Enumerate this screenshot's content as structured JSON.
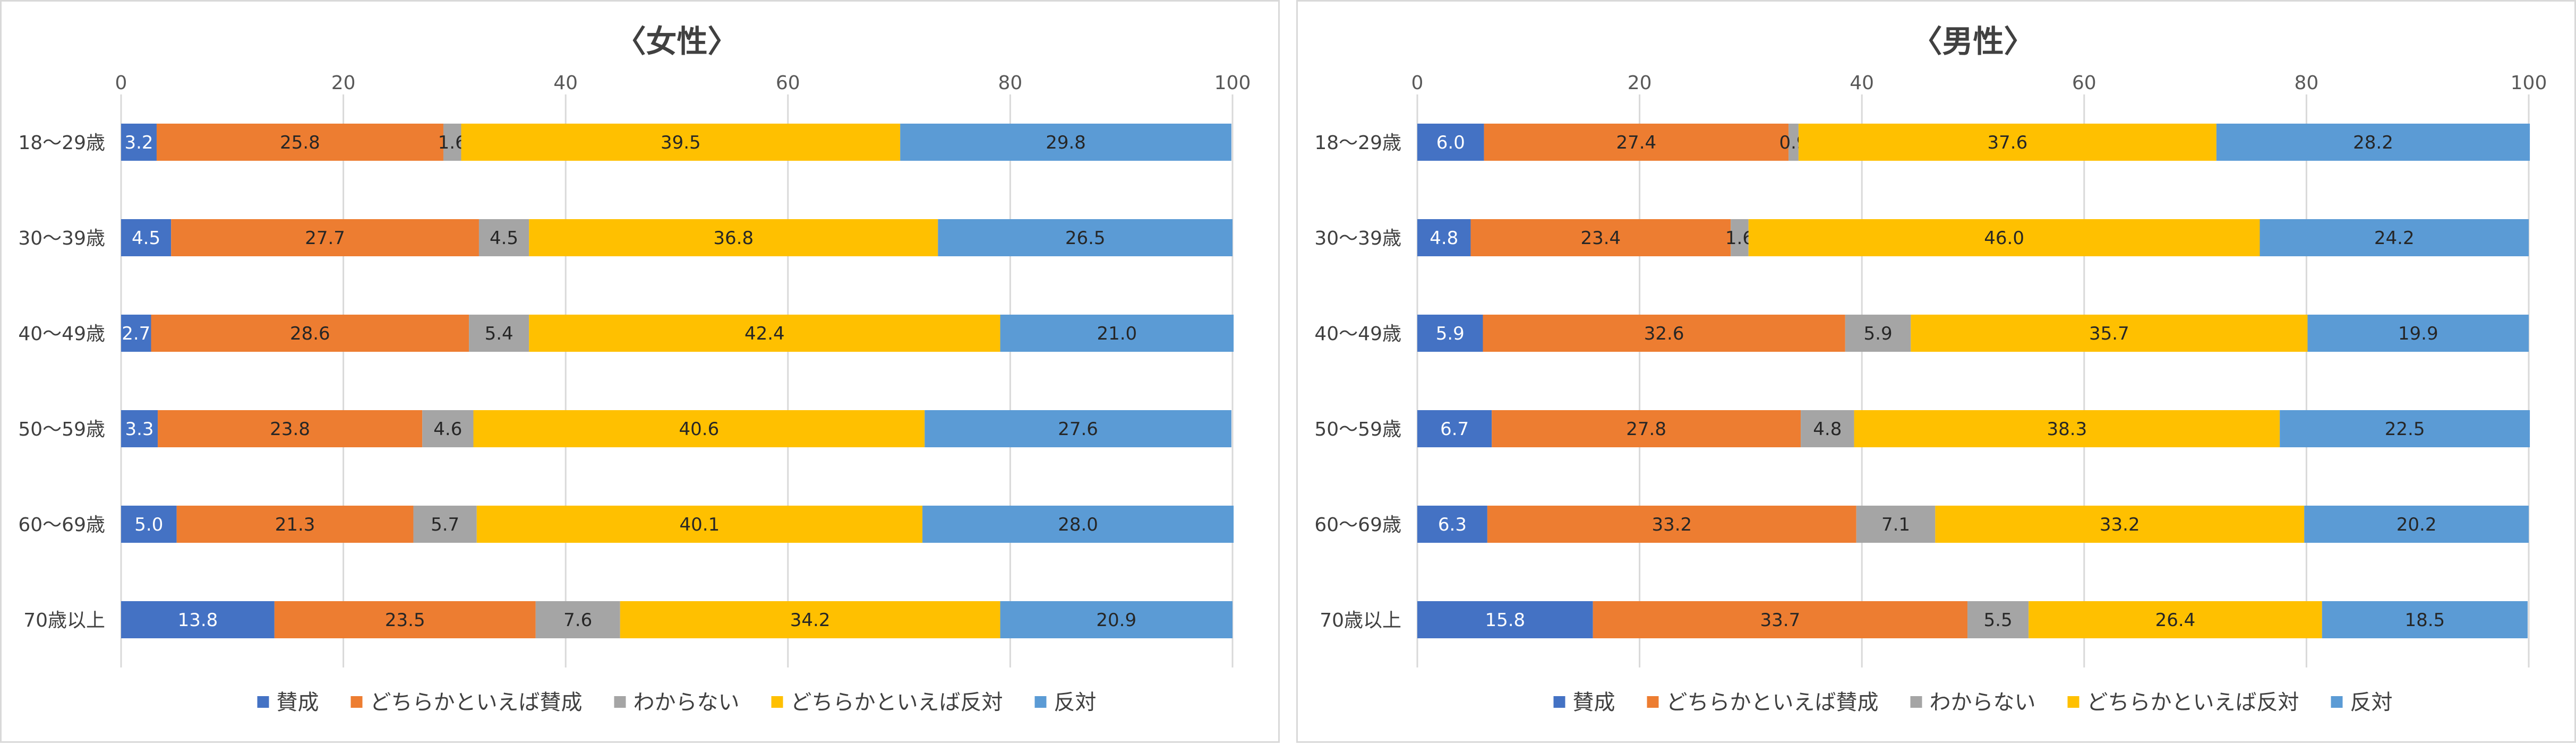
{
  "legend": [
    "賛成",
    "どちらかといえば賛成",
    "わからない",
    "どちらかといえば反対",
    "反対"
  ],
  "colors": [
    "#4472C4",
    "#ED7D31",
    "#A5A5A5",
    "#FFC000",
    "#5B9BD5"
  ],
  "label_colors": [
    "#ffffff",
    "#262626",
    "#262626",
    "#262626",
    "#262626"
  ],
  "chart_data": [
    {
      "type": "bar",
      "orientation": "horizontal",
      "stacked": true,
      "title": "〈女性〉",
      "categories": [
        "18～29歳",
        "30～39歳",
        "40～49歳",
        "50～59歳",
        "60～69歳",
        "70歳以上"
      ],
      "xlim": [
        0,
        100
      ],
      "xticks": [
        "0",
        "20",
        "40",
        "60",
        "80",
        "100"
      ],
      "grid": true,
      "legend_position": "bottom",
      "series": [
        {
          "name": "賛成",
          "values": [
            3.2,
            4.5,
            2.7,
            3.3,
            5.0,
            13.8
          ],
          "labels": [
            "3.2",
            "4.5",
            "2.7",
            "3.3",
            "5.0",
            "13.8"
          ]
        },
        {
          "name": "どちらかといえば賛成",
          "values": [
            25.8,
            27.7,
            28.6,
            23.8,
            21.3,
            23.5
          ],
          "labels": [
            "25.8",
            "27.7",
            "28.6",
            "23.8",
            "21.3",
            "23.5"
          ]
        },
        {
          "name": "わからない",
          "values": [
            1.6,
            4.5,
            5.4,
            4.6,
            5.7,
            7.6
          ],
          "labels": [
            "1.6",
            "4.5",
            "5.4",
            "4.6",
            "5.7",
            "7.6"
          ]
        },
        {
          "name": "どちらかといえば反対",
          "values": [
            39.5,
            36.8,
            42.4,
            40.6,
            40.1,
            34.2
          ],
          "labels": [
            "39.5",
            "36.8",
            "42.4",
            "40.6",
            "40.1",
            "34.2"
          ]
        },
        {
          "name": "反対",
          "values": [
            29.8,
            26.5,
            21.0,
            27.6,
            28.0,
            20.9
          ],
          "labels": [
            "29.8",
            "26.5",
            "21.0",
            "27.6",
            "28.0",
            "20.9"
          ]
        }
      ]
    },
    {
      "type": "bar",
      "orientation": "horizontal",
      "stacked": true,
      "title": "〈男性〉",
      "categories": [
        "18～29歳",
        "30～39歳",
        "40～49歳",
        "50～59歳",
        "60～69歳",
        "70歳以上"
      ],
      "xlim": [
        0,
        100
      ],
      "xticks": [
        "0",
        "20",
        "40",
        "60",
        "80",
        "100"
      ],
      "grid": true,
      "legend_position": "bottom",
      "series": [
        {
          "name": "賛成",
          "values": [
            6.0,
            4.8,
            5.9,
            6.7,
            6.3,
            15.8
          ],
          "labels": [
            "6.0",
            "4.8",
            "5.9",
            "6.7",
            "6.3",
            "15.8"
          ]
        },
        {
          "name": "どちらかといえば賛成",
          "values": [
            27.4,
            23.4,
            32.6,
            27.8,
            33.2,
            33.7
          ],
          "labels": [
            "27.4",
            "23.4",
            "32.6",
            "27.8",
            "33.2",
            "33.7"
          ]
        },
        {
          "name": "わからない",
          "values": [
            0.9,
            1.6,
            5.9,
            4.8,
            7.1,
            5.5
          ],
          "labels": [
            "0.9",
            "1.6",
            "5.9",
            "4.8",
            "7.1",
            "5.5"
          ]
        },
        {
          "name": "どちらかといえば反対",
          "values": [
            37.6,
            46.0,
            35.7,
            38.3,
            33.2,
            26.4
          ],
          "labels": [
            "37.6",
            "46.0",
            "35.7",
            "38.3",
            "33.2",
            "26.4"
          ]
        },
        {
          "name": "反対",
          "values": [
            28.2,
            24.2,
            19.9,
            22.5,
            20.2,
            18.5
          ],
          "labels": [
            "28.2",
            "24.2",
            "19.9",
            "22.5",
            "20.2",
            "18.5"
          ]
        }
      ]
    }
  ]
}
